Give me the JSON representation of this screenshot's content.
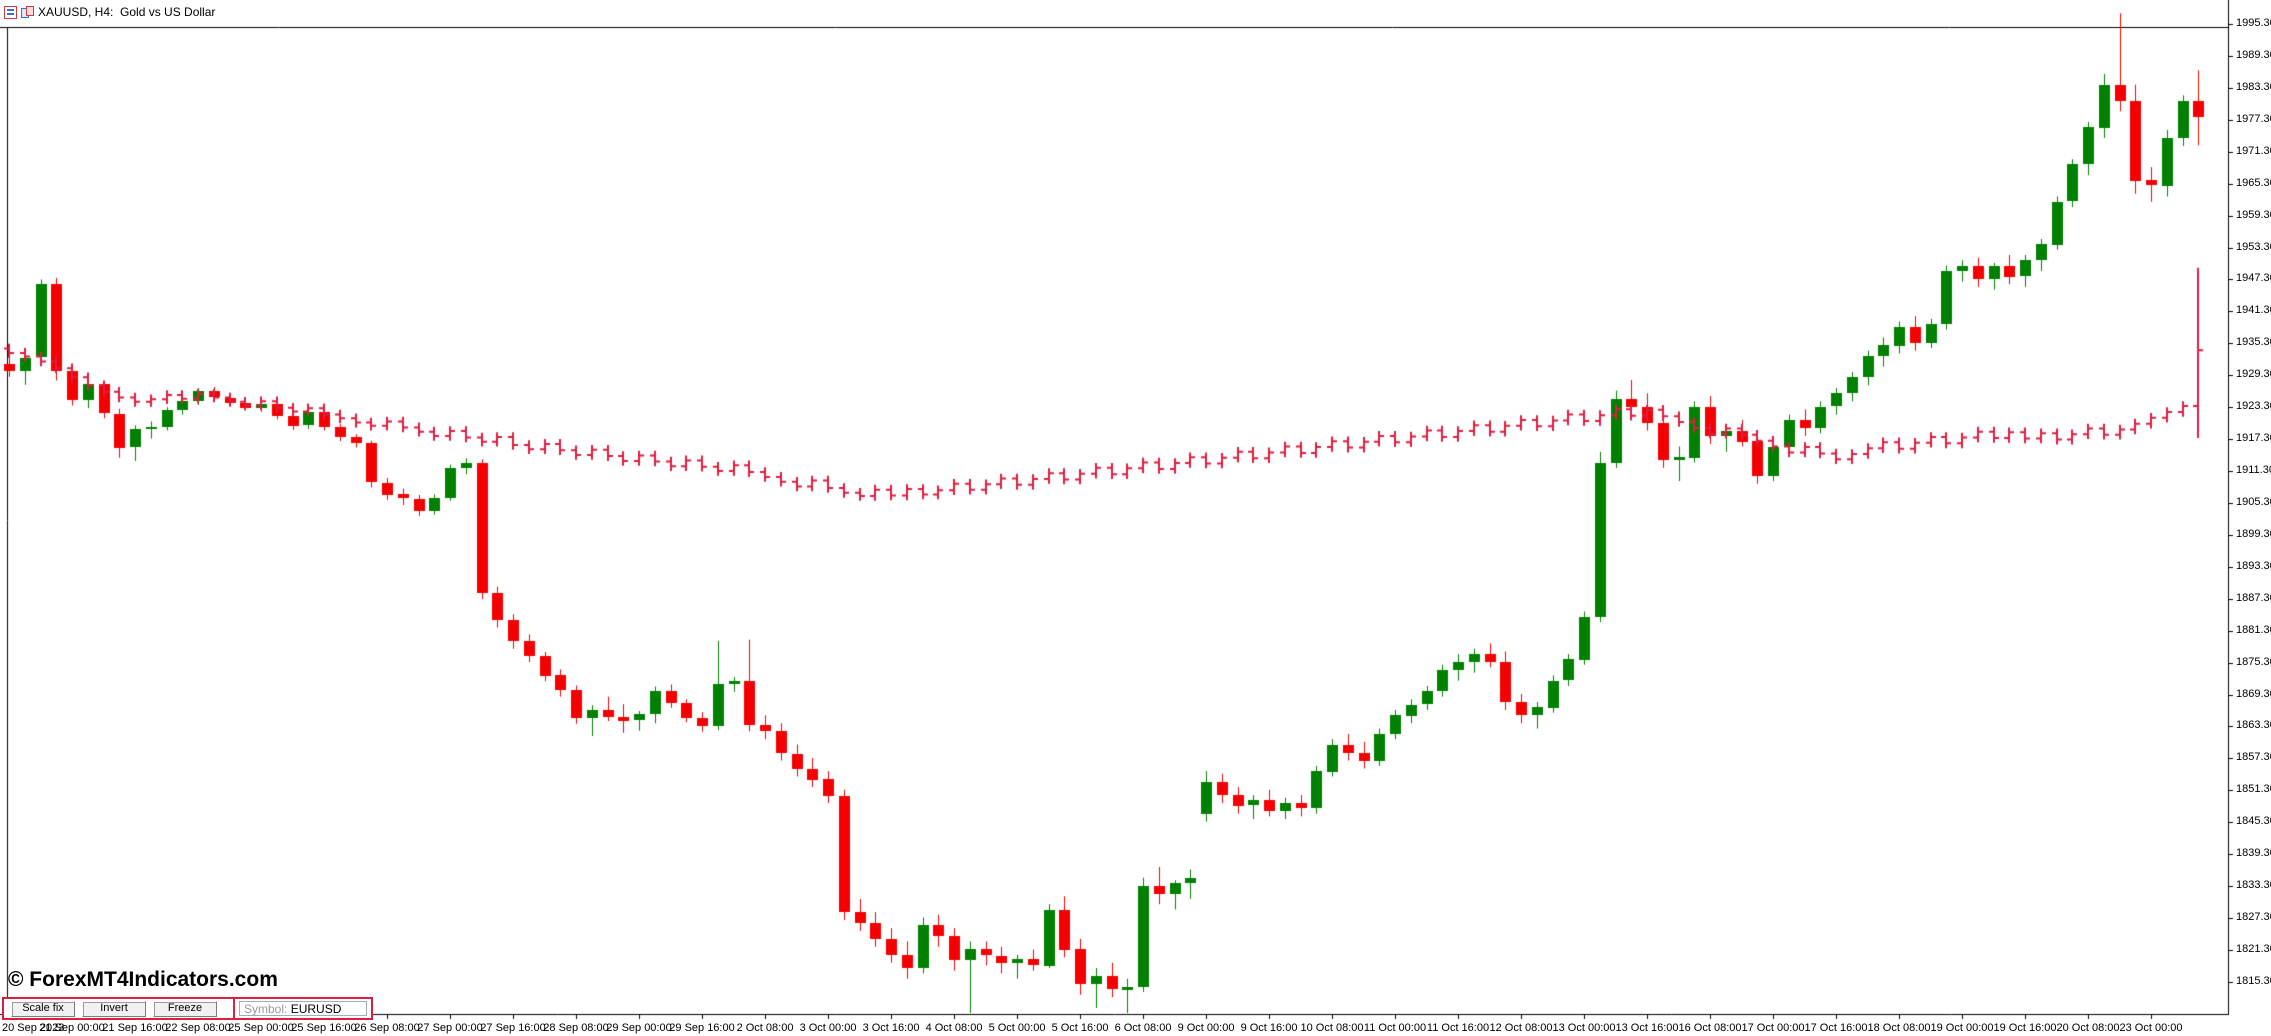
{
  "window": {
    "title": "XAUUSD, H4:  Gold vs US Dollar"
  },
  "watermark": "© ForexMT4Indicators.com",
  "toolbar": {
    "buttons": [
      "Scale fix",
      "Invert",
      "Freeze"
    ],
    "symbol_label": "Symbol: ",
    "symbol_value": "EURUSD"
  },
  "colors": {
    "bull_candle": "#008000",
    "bear_candle": "#f40000",
    "overlay_bars": "#dc1e41",
    "panel_border": "#dc1e41",
    "axis": "#000000"
  },
  "chart_data": {
    "type": "candlestick",
    "symbol": "XAUUSD",
    "timeframe": "H4",
    "title": "XAUUSD, H4:  Gold vs US Dollar",
    "grid": false,
    "legend_position": "none",
    "price_axis": {
      "side": "right",
      "max": 1995.3,
      "min": 1815.3,
      "step": 6.0,
      "labels": [
        "1995.30",
        "1989.30",
        "1983.30",
        "1977.30",
        "1971.30",
        "1965.30",
        "1959.30",
        "1953.30",
        "1947.30",
        "1941.30",
        "1935.30",
        "1929.30",
        "1923.30",
        "1917.30",
        "1911.30",
        "1905.30",
        "1899.30",
        "1893.30",
        "1887.30",
        "1881.30",
        "1875.30",
        "1869.30",
        "1863.30",
        "1857.30",
        "1851.30",
        "1845.30",
        "1839.30",
        "1833.30",
        "1827.30",
        "1821.30",
        "1815.30"
      ]
    },
    "time_axis": {
      "labels": [
        "20 Sep 2023",
        "21 Sep 00:00",
        "21 Sep 16:00",
        "22 Sep 08:00",
        "25 Sep 00:00",
        "25 Sep 16:00",
        "26 Sep 08:00",
        "27 Sep 00:00",
        "27 Sep 16:00",
        "28 Sep 08:00",
        "29 Sep 00:00",
        "29 Sep 16:00",
        "2 Oct 08:00",
        "3 Oct 00:00",
        "3 Oct 16:00",
        "4 Oct 08:00",
        "5 Oct 00:00",
        "5 Oct 16:00",
        "6 Oct 08:00",
        "9 Oct 00:00",
        "9 Oct 16:00",
        "10 Oct 08:00",
        "11 Oct 00:00",
        "11 Oct 16:00",
        "12 Oct 08:00",
        "13 Oct 00:00",
        "13 Oct 16:00",
        "16 Oct 08:00",
        "17 Oct 00:00",
        "17 Oct 16:00",
        "18 Oct 08:00",
        "19 Oct 00:00",
        "19 Oct 16:00",
        "20 Oct 08:00",
        "23 Oct 00:00"
      ],
      "bars_per_label": 4
    },
    "candles": [
      [
        1931.5,
        1933.5,
        1929.0,
        1930.2
      ],
      [
        1930.2,
        1933.0,
        1927.5,
        1932.6
      ],
      [
        1932.6,
        1947.3,
        1931.2,
        1946.4
      ],
      [
        1946.4,
        1947.6,
        1928.3,
        1930.1
      ],
      [
        1930.1,
        1930.8,
        1923.6,
        1924.6
      ],
      [
        1924.6,
        1928.6,
        1923.1,
        1927.6
      ],
      [
        1927.6,
        1928.2,
        1921.2,
        1922.1
      ],
      [
        1922.1,
        1923.0,
        1913.8,
        1915.8
      ],
      [
        1915.8,
        1919.9,
        1913.2,
        1919.2
      ],
      [
        1919.2,
        1920.6,
        1917.4,
        1919.5
      ],
      [
        1919.5,
        1923.3,
        1918.9,
        1922.7
      ],
      [
        1922.7,
        1925.1,
        1921.9,
        1924.4
      ],
      [
        1924.4,
        1926.9,
        1923.7,
        1926.3
      ],
      [
        1926.3,
        1927.1,
        1924.7,
        1925.1
      ],
      [
        1925.1,
        1925.9,
        1923.5,
        1924.1
      ],
      [
        1924.1,
        1924.9,
        1922.7,
        1923.2
      ],
      [
        1923.2,
        1925.0,
        1922.4,
        1923.9
      ],
      [
        1923.9,
        1924.4,
        1921.0,
        1921.7
      ],
      [
        1921.7,
        1922.3,
        1919.0,
        1919.8
      ],
      [
        1919.8,
        1922.9,
        1919.2,
        1922.3
      ],
      [
        1922.3,
        1922.9,
        1918.9,
        1919.5
      ],
      [
        1919.5,
        1920.1,
        1916.9,
        1917.6
      ],
      [
        1917.6,
        1918.2,
        1915.7,
        1916.5
      ],
      [
        1916.5,
        1917.0,
        1908.2,
        1909.1
      ],
      [
        1909.1,
        1910.0,
        1905.9,
        1906.9
      ],
      [
        1906.9,
        1908.0,
        1904.9,
        1906.1
      ],
      [
        1906.1,
        1906.8,
        1902.9,
        1903.9
      ],
      [
        1903.9,
        1906.9,
        1903.1,
        1906.3
      ],
      [
        1906.3,
        1912.5,
        1905.7,
        1911.9
      ],
      [
        1911.9,
        1913.7,
        1910.7,
        1912.9
      ],
      [
        1912.9,
        1913.5,
        1887.2,
        1888.4
      ],
      [
        1888.4,
        1889.6,
        1881.9,
        1883.3
      ],
      [
        1883.3,
        1884.4,
        1877.9,
        1879.4
      ],
      [
        1879.4,
        1880.6,
        1875.4,
        1876.6
      ],
      [
        1876.6,
        1877.3,
        1871.8,
        1872.9
      ],
      [
        1872.9,
        1874.0,
        1868.9,
        1870.1
      ],
      [
        1870.1,
        1871.0,
        1863.8,
        1864.9
      ],
      [
        1864.9,
        1867.3,
        1861.5,
        1866.4
      ],
      [
        1866.4,
        1868.9,
        1864.3,
        1865.1
      ],
      [
        1865.1,
        1867.5,
        1862.1,
        1864.4
      ],
      [
        1864.4,
        1866.2,
        1862.5,
        1865.6
      ],
      [
        1865.6,
        1870.8,
        1863.9,
        1869.9
      ],
      [
        1869.9,
        1871.2,
        1866.8,
        1867.7
      ],
      [
        1867.7,
        1868.4,
        1864.1,
        1864.9
      ],
      [
        1864.9,
        1866.0,
        1862.3,
        1863.4
      ],
      [
        1863.4,
        1879.4,
        1862.6,
        1871.3
      ],
      [
        1871.3,
        1872.6,
        1869.8,
        1871.9
      ],
      [
        1871.9,
        1879.6,
        1862.4,
        1863.6
      ],
      [
        1863.6,
        1865.4,
        1860.9,
        1862.4
      ],
      [
        1862.4,
        1863.9,
        1856.9,
        1858.2
      ],
      [
        1858.2,
        1859.9,
        1853.9,
        1855.4
      ],
      [
        1855.4,
        1857.4,
        1851.9,
        1853.4
      ],
      [
        1853.4,
        1854.9,
        1848.9,
        1850.2
      ],
      [
        1850.2,
        1851.4,
        1826.9,
        1828.4
      ],
      [
        1828.4,
        1830.9,
        1824.9,
        1826.4
      ],
      [
        1826.4,
        1828.4,
        1821.9,
        1823.4
      ],
      [
        1823.4,
        1825.4,
        1818.9,
        1820.4
      ],
      [
        1820.4,
        1822.9,
        1815.9,
        1817.9
      ],
      [
        1817.9,
        1827.4,
        1816.9,
        1825.9
      ],
      [
        1825.9,
        1827.9,
        1821.9,
        1823.9
      ],
      [
        1823.9,
        1825.4,
        1817.4,
        1819.4
      ],
      [
        1819.4,
        1822.9,
        1808.4,
        1821.4
      ],
      [
        1821.4,
        1822.9,
        1818.4,
        1820.2
      ],
      [
        1820.2,
        1821.9,
        1816.9,
        1818.9
      ],
      [
        1818.9,
        1820.4,
        1815.9,
        1819.6
      ],
      [
        1819.6,
        1821.4,
        1817.4,
        1818.4
      ],
      [
        1818.4,
        1829.9,
        1817.9,
        1828.9
      ],
      [
        1828.9,
        1831.4,
        1819.9,
        1821.4
      ],
      [
        1821.4,
        1823.4,
        1812.9,
        1814.9
      ],
      [
        1814.9,
        1817.9,
        1810.4,
        1816.4
      ],
      [
        1816.4,
        1818.9,
        1812.4,
        1813.9
      ],
      [
        1813.9,
        1815.9,
        1807.9,
        1814.4
      ],
      [
        1814.4,
        1834.9,
        1813.4,
        1833.4
      ],
      [
        1833.4,
        1836.9,
        1829.9,
        1831.9
      ],
      [
        1831.9,
        1834.4,
        1828.9,
        1833.9
      ],
      [
        1833.9,
        1836.4,
        1830.9,
        1834.9
      ],
      [
        1846.9,
        1854.9,
        1845.4,
        1852.9
      ],
      [
        1852.9,
        1854.4,
        1848.9,
        1850.4
      ],
      [
        1850.4,
        1851.9,
        1846.9,
        1848.4
      ],
      [
        1848.4,
        1850.4,
        1845.9,
        1849.4
      ],
      [
        1849.4,
        1851.4,
        1846.4,
        1847.4
      ],
      [
        1847.4,
        1849.9,
        1845.9,
        1848.9
      ],
      [
        1848.9,
        1850.4,
        1846.4,
        1847.9
      ],
      [
        1847.9,
        1855.9,
        1846.9,
        1854.9
      ],
      [
        1854.9,
        1860.9,
        1853.9,
        1859.9
      ],
      [
        1859.9,
        1861.9,
        1856.9,
        1858.4
      ],
      [
        1858.4,
        1860.4,
        1855.4,
        1856.9
      ],
      [
        1856.9,
        1862.9,
        1855.9,
        1861.9
      ],
      [
        1861.9,
        1866.4,
        1860.9,
        1865.4
      ],
      [
        1865.4,
        1868.4,
        1863.9,
        1867.4
      ],
      [
        1867.4,
        1870.9,
        1866.4,
        1869.9
      ],
      [
        1869.9,
        1874.9,
        1868.9,
        1873.9
      ],
      [
        1873.9,
        1876.9,
        1871.9,
        1875.4
      ],
      [
        1875.4,
        1877.9,
        1873.4,
        1876.9
      ],
      [
        1876.9,
        1878.9,
        1874.4,
        1875.4
      ],
      [
        1875.4,
        1877.4,
        1866.4,
        1867.9
      ],
      [
        1867.9,
        1869.4,
        1863.9,
        1865.4
      ],
      [
        1865.4,
        1867.9,
        1862.9,
        1866.9
      ],
      [
        1866.9,
        1872.9,
        1865.9,
        1871.9
      ],
      [
        1871.9,
        1876.9,
        1870.9,
        1875.9
      ],
      [
        1875.9,
        1884.9,
        1874.9,
        1883.9
      ],
      [
        1883.9,
        1914.9,
        1882.9,
        1912.9
      ],
      [
        1912.9,
        1926.4,
        1911.9,
        1924.9
      ],
      [
        1924.9,
        1928.4,
        1921.4,
        1923.4
      ],
      [
        1923.4,
        1925.9,
        1918.9,
        1920.4
      ],
      [
        1920.4,
        1922.4,
        1911.9,
        1913.4
      ],
      [
        1913.4,
        1915.9,
        1909.4,
        1913.9
      ],
      [
        1913.9,
        1924.4,
        1912.9,
        1923.4
      ],
      [
        1923.4,
        1925.4,
        1916.4,
        1917.9
      ],
      [
        1917.9,
        1919.9,
        1914.9,
        1918.9
      ],
      [
        1918.9,
        1920.9,
        1915.9,
        1916.9
      ],
      [
        1916.9,
        1918.9,
        1908.9,
        1910.4
      ],
      [
        1910.4,
        1916.9,
        1909.4,
        1915.9
      ],
      [
        1915.9,
        1921.9,
        1914.9,
        1920.9
      ],
      [
        1920.9,
        1922.9,
        1917.9,
        1919.4
      ],
      [
        1919.4,
        1924.4,
        1918.4,
        1923.4
      ],
      [
        1923.4,
        1926.9,
        1921.9,
        1925.9
      ],
      [
        1925.9,
        1929.9,
        1924.4,
        1928.9
      ],
      [
        1928.9,
        1933.9,
        1927.4,
        1932.9
      ],
      [
        1932.9,
        1936.4,
        1930.9,
        1934.9
      ],
      [
        1934.9,
        1939.4,
        1933.4,
        1938.4
      ],
      [
        1938.4,
        1940.4,
        1933.9,
        1935.4
      ],
      [
        1935.4,
        1939.9,
        1934.4,
        1938.9
      ],
      [
        1938.9,
        1949.9,
        1937.9,
        1948.9
      ],
      [
        1948.9,
        1950.9,
        1946.9,
        1949.9
      ],
      [
        1949.9,
        1951.4,
        1945.9,
        1947.4
      ],
      [
        1947.4,
        1950.4,
        1945.4,
        1949.9
      ],
      [
        1949.9,
        1951.9,
        1946.4,
        1947.9
      ],
      [
        1947.9,
        1951.9,
        1945.9,
        1950.9
      ],
      [
        1950.9,
        1954.9,
        1948.9,
        1953.9
      ],
      [
        1953.9,
        1962.9,
        1952.9,
        1961.9
      ],
      [
        1961.9,
        1969.9,
        1960.9,
        1968.9
      ],
      [
        1968.9,
        1976.9,
        1966.9,
        1975.9
      ],
      [
        1975.9,
        1985.9,
        1973.9,
        1983.9
      ],
      [
        1983.9,
        1997.3,
        1978.9,
        1980.9
      ],
      [
        1980.9,
        1983.9,
        1963.4,
        1965.9
      ],
      [
        1965.9,
        1968.4,
        1961.9,
        1964.9
      ],
      [
        1964.9,
        1975.4,
        1962.9,
        1973.9
      ],
      [
        1973.9,
        1981.9,
        1972.4,
        1980.9
      ],
      [
        1980.9,
        1986.6,
        1972.5,
        1977.9
      ]
    ],
    "overlay": {
      "symbol": "EURUSD",
      "style": "ohlc-bars",
      "closes": [
        1933.5,
        1932.8,
        1931.9,
        1930.6,
        1928.9,
        1927.4,
        1926.2,
        1925.1,
        1924.3,
        1924.8,
        1925.6,
        1924.9,
        1925.8,
        1925.1,
        1924.3,
        1923.6,
        1924.4,
        1923.2,
        1922.5,
        1923.1,
        1921.9,
        1921.2,
        1920.4,
        1919.8,
        1920.6,
        1919.5,
        1918.7,
        1917.9,
        1918.8,
        1917.6,
        1916.8,
        1917.7,
        1916.2,
        1915.4,
        1916.4,
        1915.2,
        1914.3,
        1915.3,
        1914.1,
        1913.2,
        1914.2,
        1913.1,
        1912.2,
        1913.3,
        1912.1,
        1911.3,
        1912.4,
        1911.1,
        1910.2,
        1909.3,
        1908.4,
        1909.5,
        1908.1,
        1907.2,
        1906.6,
        1907.8,
        1906.7,
        1907.9,
        1906.9,
        1907.7,
        1908.9,
        1907.8,
        1908.8,
        1909.9,
        1908.7,
        1909.8,
        1910.9,
        1909.7,
        1910.8,
        1911.9,
        1910.7,
        1911.8,
        1912.9,
        1911.7,
        1912.8,
        1913.9,
        1912.7,
        1913.8,
        1914.9,
        1913.7,
        1914.8,
        1915.9,
        1914.7,
        1915.8,
        1916.9,
        1915.7,
        1916.8,
        1917.9,
        1916.7,
        1917.8,
        1918.9,
        1917.7,
        1918.8,
        1919.9,
        1918.7,
        1919.8,
        1920.9,
        1919.7,
        1920.8,
        1921.9,
        1920.7,
        1921.8,
        1922.9,
        1921.7,
        1922.8,
        1921.6,
        1920.5,
        1919.4,
        1918.3,
        1919.3,
        1918.1,
        1917.0,
        1915.9,
        1914.8,
        1915.8,
        1914.6,
        1913.5,
        1914.5,
        1915.6,
        1916.7,
        1915.5,
        1916.6,
        1917.7,
        1916.5,
        1917.6,
        1918.7,
        1917.5,
        1918.6,
        1917.4,
        1918.4,
        1917.2,
        1918.2,
        1919.3,
        1918.1,
        1919.1,
        1920.2,
        1921.3,
        1922.4,
        1923.5,
        1934.0
      ],
      "last_bar": {
        "high": 1949.5,
        "low": 1917.5,
        "close": 1934.0
      }
    }
  }
}
